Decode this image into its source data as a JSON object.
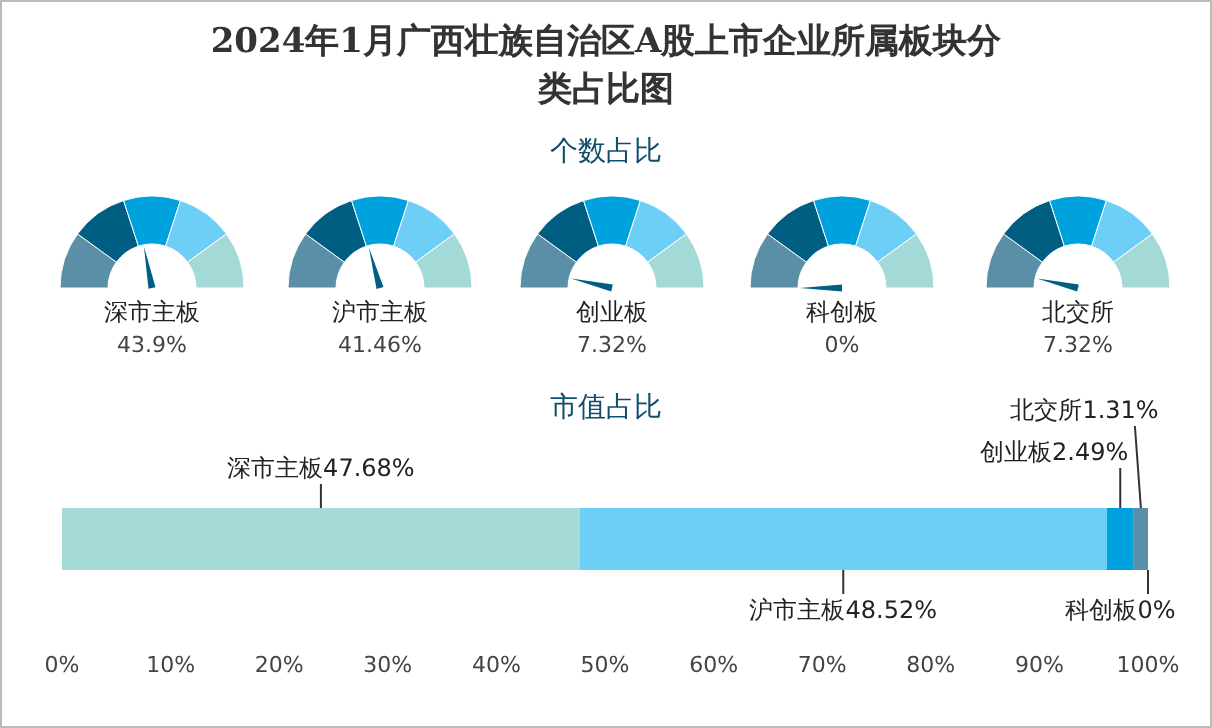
{
  "chart_data": [
    {
      "type": "other",
      "title": "2024年1月广西壮族自治区A股上市企业所属板块分类占比图",
      "subtitle": "个数占比",
      "categories": [
        "深市主板"
      ],
      "values": [
        43.9
      ],
      "value_labels": [
        "43.9%"
      ],
      "color": "#005e83"
    },
    {
      "type": "other",
      "categories": [
        "沪市主板"
      ],
      "values": [
        41.46
      ],
      "value_labels": [
        "41.46%"
      ],
      "color": "#005e83"
    },
    {
      "type": "other",
      "categories": [
        "创业板"
      ],
      "values": [
        7.32
      ],
      "value_labels": [
        "7.32%"
      ],
      "color": "#005e83"
    },
    {
      "type": "other",
      "categories": [
        "科创板"
      ],
      "values": [
        0
      ],
      "value_labels": [
        "0%"
      ],
      "color": "#005e83"
    },
    {
      "type": "other",
      "categories": [
        "北交所"
      ],
      "values": [
        7.32
      ],
      "value_labels": [
        "7.32%"
      ],
      "color": "#005e83"
    },
    {
      "type": "bar",
      "title": "市值占比",
      "orientation": "horizontal",
      "stacked": true,
      "categories": [
        null
      ],
      "xlim": [
        0,
        100
      ],
      "xticks": [
        {
          "value": 0,
          "label": "0%"
        },
        {
          "value": 10,
          "label": "10%"
        },
        {
          "value": 20,
          "label": "20%"
        },
        {
          "value": 30,
          "label": "30%"
        },
        {
          "value": 40,
          "label": "40%"
        },
        {
          "value": 50,
          "label": "50%"
        },
        {
          "value": 60,
          "label": "60%"
        },
        {
          "value": 70,
          "label": "70%"
        },
        {
          "value": 80,
          "label": "80%"
        },
        {
          "value": 90,
          "label": "90%"
        },
        {
          "value": 100,
          "label": "100%"
        }
      ],
      "series": [
        {
          "name": "深市主板",
          "color": "#a3d9d6",
          "values": [
            47.68
          ],
          "value_labels": [
            "47.68%"
          ]
        },
        {
          "name": "沪市主板",
          "color": "#6dcff6",
          "values": [
            48.52
          ],
          "value_labels": [
            "48.52%"
          ]
        },
        {
          "name": "创业板",
          "color": "#00a2de",
          "values": [
            2.49
          ],
          "value_labels": [
            "2.49%"
          ]
        },
        {
          "name": "北交所",
          "color": "#5b8fa8",
          "values": [
            1.31
          ],
          "value_labels": [
            "1.31%"
          ]
        },
        {
          "name": "科创板",
          "color": "#005e83",
          "values": [
            0
          ],
          "value_labels": [
            "0%"
          ]
        }
      ]
    }
  ]
}
